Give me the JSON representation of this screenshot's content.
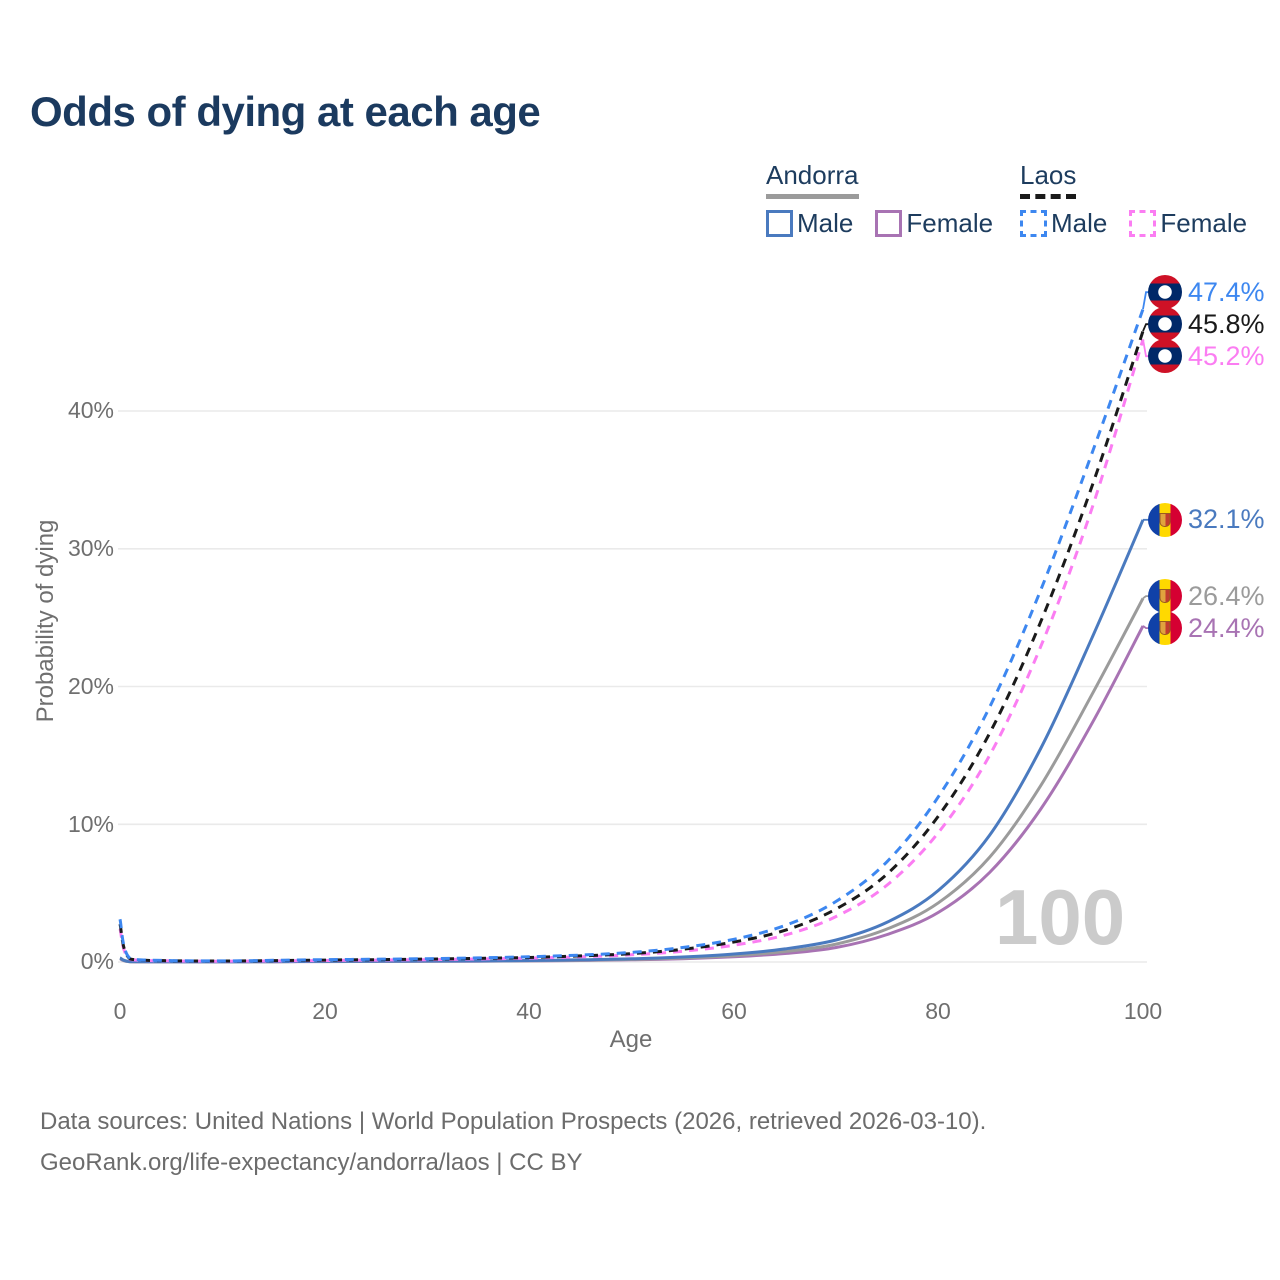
{
  "title": "Odds of dying at each age",
  "legend": {
    "andorra": {
      "country": "Andorra",
      "male_label": "Male",
      "female_label": "Female"
    },
    "laos": {
      "country": "Laos",
      "male_label": "Male",
      "female_label": "Female"
    }
  },
  "footer": {
    "line1": "Data sources: United Nations | World Population Prospects (2026, retrieved 2026-03-10).",
    "line2": "GeoRank.org/life-expectancy/andorra/laos | CC BY"
  },
  "chart_data": {
    "type": "line",
    "title": "Odds of dying at each age",
    "xlabel": "Age",
    "ylabel": "Probability of dying",
    "x_ticks": [
      "0",
      "20",
      "40",
      "60",
      "80",
      "100"
    ],
    "x_tick_values": [
      0,
      20,
      40,
      60,
      80,
      100
    ],
    "y_ticks": [
      "0%",
      "10%",
      "20%",
      "30%",
      "40%"
    ],
    "y_tick_values": [
      0,
      10,
      20,
      30,
      40
    ],
    "xlim": [
      0,
      100
    ],
    "ylim_percent": [
      0,
      49
    ],
    "grid": "horizontal",
    "legend_position": "top-right",
    "watermark": "100",
    "ages": [
      0,
      1,
      5,
      10,
      15,
      20,
      25,
      30,
      35,
      40,
      45,
      50,
      55,
      60,
      65,
      70,
      75,
      80,
      85,
      90,
      95,
      100
    ],
    "series": [
      {
        "name": "Andorra Female",
        "country": "Andorra",
        "sex": "Female",
        "style": "solid",
        "color": "#a873b3",
        "end_value_percent": 24.4,
        "values": [
          0.24,
          0.02,
          0.01,
          0.01,
          0.02,
          0.03,
          0.04,
          0.05,
          0.06,
          0.08,
          0.11,
          0.16,
          0.24,
          0.38,
          0.62,
          1.05,
          2.0,
          3.6,
          6.5,
          11.1,
          17.3,
          24.4
        ]
      },
      {
        "name": "Andorra Both sexes",
        "country": "Andorra",
        "sex": "Both",
        "style": "solid",
        "color": "#9b9b9b",
        "end_value_percent": 26.4,
        "values": [
          0.27,
          0.025,
          0.015,
          0.015,
          0.025,
          0.04,
          0.05,
          0.06,
          0.07,
          0.09,
          0.13,
          0.19,
          0.29,
          0.46,
          0.76,
          1.3,
          2.4,
          4.3,
          7.6,
          12.8,
          19.4,
          26.4
        ]
      },
      {
        "name": "Andorra Male",
        "country": "Andorra",
        "sex": "Male",
        "style": "solid",
        "color": "#4a7abf",
        "end_value_percent": 32.1,
        "values": [
          0.3,
          0.03,
          0.02,
          0.02,
          0.03,
          0.05,
          0.06,
          0.07,
          0.08,
          0.11,
          0.16,
          0.23,
          0.36,
          0.58,
          0.95,
          1.6,
          2.9,
          5.2,
          9.2,
          15.5,
          23.5,
          32.1
        ]
      },
      {
        "name": "Laos Female",
        "country": "Laos",
        "sex": "Female",
        "style": "dashed",
        "color": "#fb7df2",
        "end_value_percent": 45.2,
        "values": [
          2.4,
          0.19,
          0.08,
          0.06,
          0.08,
          0.11,
          0.14,
          0.17,
          0.22,
          0.28,
          0.38,
          0.52,
          0.78,
          1.22,
          1.95,
          3.3,
          5.6,
          9.4,
          15.0,
          22.9,
          32.9,
          45.2
        ]
      },
      {
        "name": "Laos Both sexes",
        "country": "Laos",
        "sex": "Both",
        "style": "dashed",
        "color": "#1a1a1a",
        "end_value_percent": 45.8,
        "values": [
          2.75,
          0.22,
          0.09,
          0.07,
          0.1,
          0.14,
          0.17,
          0.21,
          0.26,
          0.33,
          0.44,
          0.61,
          0.92,
          1.45,
          2.3,
          3.85,
          6.4,
          10.6,
          16.6,
          24.7,
          34.5,
          45.8
        ]
      },
      {
        "name": "Laos Male",
        "country": "Laos",
        "sex": "Male",
        "style": "dashed",
        "color": "#3d87f0",
        "end_value_percent": 47.4,
        "values": [
          3.1,
          0.25,
          0.1,
          0.08,
          0.12,
          0.17,
          0.2,
          0.24,
          0.3,
          0.38,
          0.5,
          0.7,
          1.05,
          1.65,
          2.65,
          4.4,
          7.3,
          12.0,
          18.5,
          27.0,
          36.9,
          47.4
        ]
      }
    ],
    "end_labels": [
      {
        "text": "47.4%",
        "color": "#3d87f0",
        "flag": "laos",
        "series": 5
      },
      {
        "text": "45.8%",
        "color": "#1a1a1a",
        "flag": "laos",
        "series": 4
      },
      {
        "text": "45.2%",
        "color": "#fb7df2",
        "flag": "laos",
        "series": 3
      },
      {
        "text": "32.1%",
        "color": "#4a7abf",
        "flag": "andorra",
        "series": 2
      },
      {
        "text": "26.4%",
        "color": "#9b9b9b",
        "flag": "andorra",
        "series": 1
      },
      {
        "text": "24.4%",
        "color": "#a873b3",
        "flag": "andorra",
        "series": 0
      }
    ]
  }
}
